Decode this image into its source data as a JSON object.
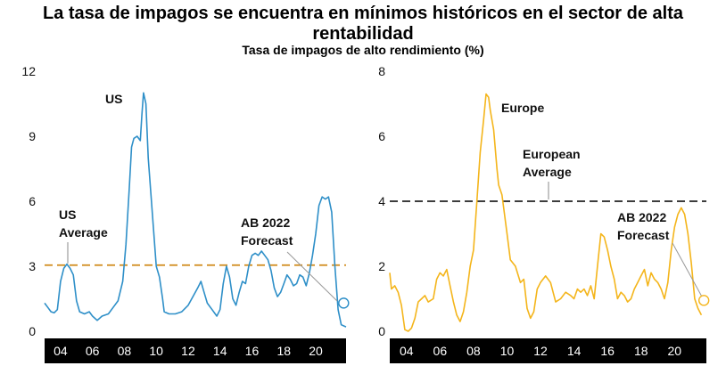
{
  "title": "La tasa de impagos se encuentra en mínimos históricos en el sector de alta rentabilidad",
  "subtitle": "Tasa de impagos de alto rendimiento (%)",
  "chart_data": [
    {
      "type": "line",
      "name": "US",
      "color": "#2e8fc8",
      "ylim": [
        0,
        12
      ],
      "yticks": [
        "0",
        "3",
        "6",
        "9",
        "12"
      ],
      "xticks": [
        "04",
        "06",
        "08",
        "10",
        "12",
        "14",
        "16",
        "18",
        "20"
      ],
      "xlim": [
        2003.0,
        2021.9
      ],
      "series_label": "US",
      "average": {
        "value": 3.05,
        "label_line1": "US",
        "label_line2": "Average",
        "color": "#d08a1a"
      },
      "forecast": {
        "value": 1.3,
        "year": 2021.75,
        "label_line1": "AB 2022",
        "label_line2": "Forecast"
      },
      "points": [
        [
          2003.0,
          1.3
        ],
        [
          2003.2,
          1.1
        ],
        [
          2003.4,
          0.9
        ],
        [
          2003.6,
          0.85
        ],
        [
          2003.8,
          1.0
        ],
        [
          2004.0,
          2.3
        ],
        [
          2004.2,
          2.9
        ],
        [
          2004.4,
          3.1
        ],
        [
          2004.6,
          2.9
        ],
        [
          2004.8,
          2.6
        ],
        [
          2005.0,
          1.4
        ],
        [
          2005.2,
          0.9
        ],
        [
          2005.5,
          0.8
        ],
        [
          2005.8,
          0.9
        ],
        [
          2006.0,
          0.7
        ],
        [
          2006.3,
          0.5
        ],
        [
          2006.6,
          0.7
        ],
        [
          2007.0,
          0.8
        ],
        [
          2007.3,
          1.1
        ],
        [
          2007.6,
          1.4
        ],
        [
          2007.9,
          2.3
        ],
        [
          2008.1,
          4.0
        ],
        [
          2008.3,
          6.5
        ],
        [
          2008.45,
          8.5
        ],
        [
          2008.6,
          8.9
        ],
        [
          2008.8,
          9.0
        ],
        [
          2009.0,
          8.8
        ],
        [
          2009.1,
          10.0
        ],
        [
          2009.2,
          11.0
        ],
        [
          2009.35,
          10.5
        ],
        [
          2009.5,
          8.0
        ],
        [
          2009.7,
          6.0
        ],
        [
          2009.9,
          4.0
        ],
        [
          2010.0,
          3.0
        ],
        [
          2010.2,
          2.5
        ],
        [
          2010.4,
          1.5
        ],
        [
          2010.5,
          0.9
        ],
        [
          2010.8,
          0.8
        ],
        [
          2011.2,
          0.8
        ],
        [
          2011.6,
          0.9
        ],
        [
          2012.0,
          1.2
        ],
        [
          2012.3,
          1.6
        ],
        [
          2012.6,
          2.0
        ],
        [
          2012.8,
          2.3
        ],
        [
          2013.0,
          1.8
        ],
        [
          2013.2,
          1.3
        ],
        [
          2013.5,
          1.0
        ],
        [
          2013.8,
          0.7
        ],
        [
          2014.0,
          1.0
        ],
        [
          2014.2,
          2.2
        ],
        [
          2014.4,
          3.0
        ],
        [
          2014.6,
          2.5
        ],
        [
          2014.8,
          1.5
        ],
        [
          2015.0,
          1.2
        ],
        [
          2015.2,
          1.8
        ],
        [
          2015.4,
          2.3
        ],
        [
          2015.6,
          2.2
        ],
        [
          2015.8,
          3.0
        ],
        [
          2016.0,
          3.5
        ],
        [
          2016.2,
          3.6
        ],
        [
          2016.4,
          3.5
        ],
        [
          2016.6,
          3.7
        ],
        [
          2016.8,
          3.5
        ],
        [
          2017.0,
          3.3
        ],
        [
          2017.2,
          2.8
        ],
        [
          2017.4,
          2.0
        ],
        [
          2017.6,
          1.6
        ],
        [
          2017.8,
          1.8
        ],
        [
          2018.0,
          2.2
        ],
        [
          2018.2,
          2.6
        ],
        [
          2018.4,
          2.4
        ],
        [
          2018.6,
          2.1
        ],
        [
          2018.8,
          2.2
        ],
        [
          2019.0,
          2.6
        ],
        [
          2019.2,
          2.5
        ],
        [
          2019.4,
          2.1
        ],
        [
          2019.6,
          2.7
        ],
        [
          2019.8,
          3.5
        ],
        [
          2020.0,
          4.5
        ],
        [
          2020.2,
          5.8
        ],
        [
          2020.4,
          6.2
        ],
        [
          2020.6,
          6.1
        ],
        [
          2020.8,
          6.2
        ],
        [
          2021.0,
          5.5
        ],
        [
          2021.2,
          3.0
        ],
        [
          2021.4,
          1.0
        ],
        [
          2021.6,
          0.3
        ],
        [
          2021.9,
          0.2
        ]
      ]
    },
    {
      "type": "line",
      "name": "Europe",
      "color": "#f4b51b",
      "ylim": [
        0,
        8
      ],
      "yticks": [
        "0",
        "2",
        "4",
        "6",
        "8"
      ],
      "xticks": [
        "04",
        "06",
        "08",
        "10",
        "12",
        "14",
        "16",
        "18",
        "20"
      ],
      "xlim": [
        2003.0,
        2021.9
      ],
      "series_label": "Europe",
      "average": {
        "value": 4.0,
        "label_line1": "European",
        "label_line2": "Average",
        "color": "#222222"
      },
      "forecast": {
        "value": 0.95,
        "year": 2021.75,
        "label_line1": "AB 2022",
        "label_line2": "Forecast"
      },
      "points": [
        [
          2003.0,
          1.8
        ],
        [
          2003.1,
          1.3
        ],
        [
          2003.3,
          1.4
        ],
        [
          2003.5,
          1.2
        ],
        [
          2003.7,
          0.8
        ],
        [
          2003.9,
          0.05
        ],
        [
          2004.1,
          0.0
        ],
        [
          2004.3,
          0.1
        ],
        [
          2004.5,
          0.4
        ],
        [
          2004.7,
          0.9
        ],
        [
          2004.9,
          1.0
        ],
        [
          2005.1,
          1.1
        ],
        [
          2005.3,
          0.9
        ],
        [
          2005.6,
          1.0
        ],
        [
          2005.8,
          1.6
        ],
        [
          2006.0,
          1.8
        ],
        [
          2006.2,
          1.7
        ],
        [
          2006.4,
          1.9
        ],
        [
          2006.6,
          1.4
        ],
        [
          2006.8,
          0.9
        ],
        [
          2007.0,
          0.5
        ],
        [
          2007.2,
          0.3
        ],
        [
          2007.4,
          0.6
        ],
        [
          2007.6,
          1.2
        ],
        [
          2007.8,
          2.0
        ],
        [
          2008.0,
          2.5
        ],
        [
          2008.2,
          4.0
        ],
        [
          2008.4,
          5.5
        ],
        [
          2008.6,
          6.5
        ],
        [
          2008.75,
          7.3
        ],
        [
          2008.9,
          7.2
        ],
        [
          2009.0,
          6.8
        ],
        [
          2009.2,
          6.2
        ],
        [
          2009.4,
          5.0
        ],
        [
          2009.5,
          4.5
        ],
        [
          2009.7,
          4.2
        ],
        [
          2009.8,
          3.8
        ],
        [
          2010.0,
          3.0
        ],
        [
          2010.2,
          2.2
        ],
        [
          2010.5,
          2.0
        ],
        [
          2010.8,
          1.5
        ],
        [
          2011.0,
          1.6
        ],
        [
          2011.2,
          0.7
        ],
        [
          2011.4,
          0.4
        ],
        [
          2011.6,
          0.6
        ],
        [
          2011.8,
          1.3
        ],
        [
          2012.0,
          1.5
        ],
        [
          2012.3,
          1.7
        ],
        [
          2012.6,
          1.5
        ],
        [
          2012.9,
          0.9
        ],
        [
          2013.2,
          1.0
        ],
        [
          2013.5,
          1.2
        ],
        [
          2013.8,
          1.1
        ],
        [
          2014.0,
          1.0
        ],
        [
          2014.2,
          1.3
        ],
        [
          2014.4,
          1.2
        ],
        [
          2014.6,
          1.3
        ],
        [
          2014.8,
          1.1
        ],
        [
          2015.0,
          1.4
        ],
        [
          2015.2,
          1.0
        ],
        [
          2015.4,
          2.0
        ],
        [
          2015.6,
          3.0
        ],
        [
          2015.8,
          2.9
        ],
        [
          2016.0,
          2.5
        ],
        [
          2016.2,
          2.0
        ],
        [
          2016.4,
          1.6
        ],
        [
          2016.6,
          1.0
        ],
        [
          2016.8,
          1.2
        ],
        [
          2017.0,
          1.1
        ],
        [
          2017.2,
          0.9
        ],
        [
          2017.4,
          1.0
        ],
        [
          2017.6,
          1.3
        ],
        [
          2017.8,
          1.5
        ],
        [
          2018.0,
          1.7
        ],
        [
          2018.2,
          1.9
        ],
        [
          2018.4,
          1.4
        ],
        [
          2018.6,
          1.8
        ],
        [
          2018.8,
          1.6
        ],
        [
          2019.0,
          1.5
        ],
        [
          2019.2,
          1.3
        ],
        [
          2019.4,
          1.0
        ],
        [
          2019.6,
          1.5
        ],
        [
          2019.8,
          2.5
        ],
        [
          2020.0,
          3.2
        ],
        [
          2020.2,
          3.6
        ],
        [
          2020.4,
          3.8
        ],
        [
          2020.6,
          3.6
        ],
        [
          2020.8,
          3.0
        ],
        [
          2021.0,
          2.1
        ],
        [
          2021.2,
          1.0
        ],
        [
          2021.4,
          0.7
        ],
        [
          2021.6,
          0.5
        ]
      ]
    }
  ]
}
